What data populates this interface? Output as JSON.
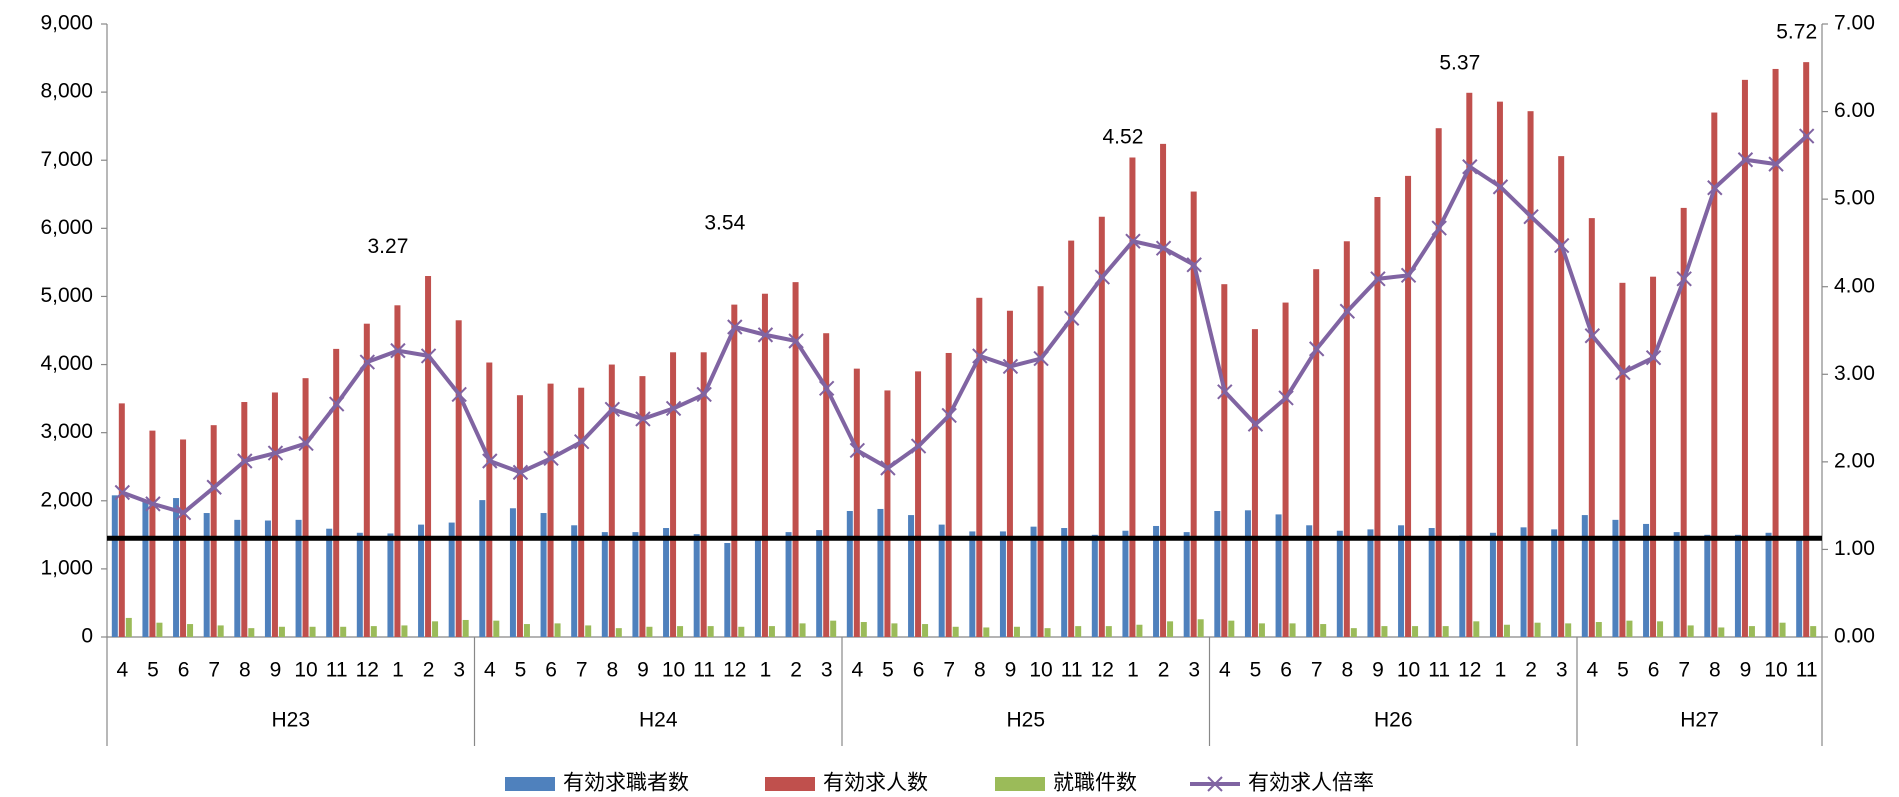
{
  "chart_data": {
    "type": "bar_line",
    "categories": [
      "4",
      "5",
      "6",
      "7",
      "8",
      "9",
      "10",
      "11",
      "12",
      "1",
      "2",
      "3",
      "4",
      "5",
      "6",
      "7",
      "8",
      "9",
      "10",
      "11",
      "12",
      "1",
      "2",
      "3",
      "4",
      "5",
      "6",
      "7",
      "8",
      "9",
      "10",
      "11",
      "12",
      "1",
      "2",
      "3",
      "4",
      "5",
      "6",
      "7",
      "8",
      "9",
      "10",
      "11",
      "12",
      "1",
      "2",
      "3",
      "4",
      "5",
      "6",
      "7",
      "8",
      "9",
      "10",
      "11"
    ],
    "groups": [
      {
        "name": "H23",
        "span": 12
      },
      {
        "name": "H24",
        "span": 12
      },
      {
        "name": "H25",
        "span": 12
      },
      {
        "name": "H26",
        "span": 12
      },
      {
        "name": "H27",
        "span": 8
      }
    ],
    "series": [
      {
        "name": "有効求職者数",
        "color": "#4f81bd",
        "type": "bar",
        "values": [
          2080,
          1990,
          2040,
          1820,
          1720,
          1710,
          1720,
          1590,
          1530,
          1520,
          1650,
          1680,
          2010,
          1890,
          1820,
          1640,
          1540,
          1540,
          1600,
          1510,
          1380,
          1460,
          1540,
          1570,
          1850,
          1880,
          1790,
          1650,
          1550,
          1550,
          1620,
          1600,
          1500,
          1560,
          1630,
          1540,
          1850,
          1860,
          1800,
          1640,
          1560,
          1580,
          1640,
          1600,
          1490,
          1530,
          1610,
          1580,
          1790,
          1720,
          1660,
          1540,
          1500,
          1500,
          1530,
          1480
        ]
      },
      {
        "name": "有効求人数",
        "color": "#c0504d",
        "type": "bar",
        "values": [
          3430,
          3030,
          2900,
          3110,
          3450,
          3590,
          3800,
          4230,
          4600,
          4870,
          5300,
          4650,
          4030,
          3550,
          3720,
          3660,
          4000,
          3830,
          4180,
          4180,
          4880,
          5040,
          5210,
          4460,
          3940,
          3620,
          3900,
          4170,
          4980,
          4790,
          5150,
          5820,
          6170,
          7040,
          7240,
          6540,
          5180,
          4520,
          4910,
          5400,
          5810,
          6460,
          6770,
          7470,
          7990,
          7860,
          7720,
          7060,
          6150,
          5200,
          5290,
          6300,
          7700,
          8180,
          8340,
          8440
        ]
      },
      {
        "name": "就職件数",
        "color": "#9bbb59",
        "type": "bar",
        "values": [
          280,
          210,
          190,
          170,
          130,
          150,
          150,
          150,
          160,
          170,
          230,
          250,
          240,
          190,
          200,
          170,
          130,
          150,
          160,
          160,
          150,
          160,
          200,
          240,
          220,
          200,
          190,
          150,
          140,
          150,
          130,
          160,
          160,
          180,
          230,
          260,
          240,
          200,
          200,
          190,
          130,
          160,
          160,
          160,
          230,
          180,
          210,
          200,
          220,
          240,
          230,
          170,
          140,
          160,
          210,
          160
        ]
      },
      {
        "name": "有効求人倍率",
        "color": "#8064a2",
        "type": "line",
        "axis": "y2",
        "values": [
          1.65,
          1.52,
          1.42,
          1.71,
          2.01,
          2.1,
          2.21,
          2.66,
          3.14,
          3.27,
          3.21,
          2.77,
          2.01,
          1.88,
          2.04,
          2.23,
          2.6,
          2.49,
          2.61,
          2.77,
          3.54,
          3.45,
          3.38,
          2.84,
          2.13,
          1.93,
          2.18,
          2.53,
          3.21,
          3.09,
          3.18,
          3.64,
          4.11,
          4.52,
          4.44,
          4.25,
          2.8,
          2.43,
          2.73,
          3.29,
          3.72,
          4.09,
          4.13,
          4.67,
          5.37,
          5.14,
          4.8,
          4.47,
          3.44,
          3.02,
          3.19,
          4.09,
          5.13,
          5.45,
          5.4,
          5.72
        ],
        "value_labels": [
          null,
          null,
          null,
          null,
          null,
          null,
          null,
          null,
          null,
          "3.27",
          null,
          null,
          null,
          null,
          null,
          null,
          null,
          null,
          null,
          null,
          "3.54",
          null,
          null,
          null,
          null,
          null,
          null,
          null,
          null,
          null,
          null,
          null,
          null,
          "4.52",
          null,
          null,
          null,
          null,
          null,
          null,
          null,
          null,
          null,
          null,
          "5.37",
          null,
          null,
          null,
          null,
          null,
          null,
          null,
          null,
          null,
          null,
          "5.72"
        ]
      }
    ],
    "ylim": [
      0,
      9000
    ],
    "yticks": [
      0,
      {
        "value": 1000,
        "label": "1,000"
      },
      {
        "value": 2000,
        "label": "2,000"
      },
      {
        "value": 3000,
        "label": "3,000"
      },
      {
        "value": 4000,
        "label": "4,000"
      },
      {
        "value": 5000,
        "label": "5,000"
      },
      {
        "value": 6000,
        "label": "6,000"
      },
      {
        "value": 7000,
        "label": "7,000"
      },
      {
        "value": 8000,
        "label": "8,000"
      },
      {
        "value": 9000,
        "label": "9,000"
      }
    ],
    "y2lim": [
      0,
      7
    ],
    "y2ticks": [
      {
        "value": 0,
        "label": "0.00"
      },
      {
        "value": 1,
        "label": "1.00"
      },
      {
        "value": 2,
        "label": "2.00"
      },
      {
        "value": 3,
        "label": "3.00"
      },
      {
        "value": 4,
        "label": "4.00"
      },
      {
        "value": 5,
        "label": "5.00"
      },
      {
        "value": 6,
        "label": "6.00"
      },
      {
        "value": 7,
        "label": "7.00"
      }
    ],
    "hline": {
      "value": 1450,
      "color": "#000000"
    },
    "legend": "bottom"
  }
}
